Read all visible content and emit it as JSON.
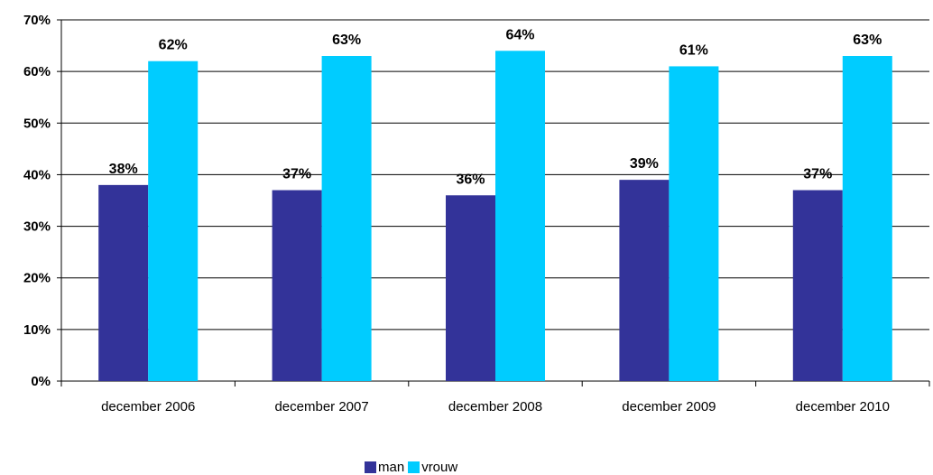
{
  "chart_data": {
    "type": "bar",
    "categories": [
      "december 2006",
      "december 2007",
      "december 2008",
      "december 2009",
      "december 2010"
    ],
    "series": [
      {
        "name": "man",
        "values": [
          38,
          37,
          36,
          39,
          37
        ],
        "color": "#333399"
      },
      {
        "name": "vrouw",
        "values": [
          62,
          63,
          64,
          61,
          63
        ],
        "color": "#00CCFF"
      }
    ],
    "ylim": [
      0,
      70
    ],
    "yticks": [
      0,
      10,
      20,
      30,
      40,
      50,
      60,
      70
    ],
    "value_suffix": "%",
    "grid": true,
    "legend_position": "bottom"
  }
}
